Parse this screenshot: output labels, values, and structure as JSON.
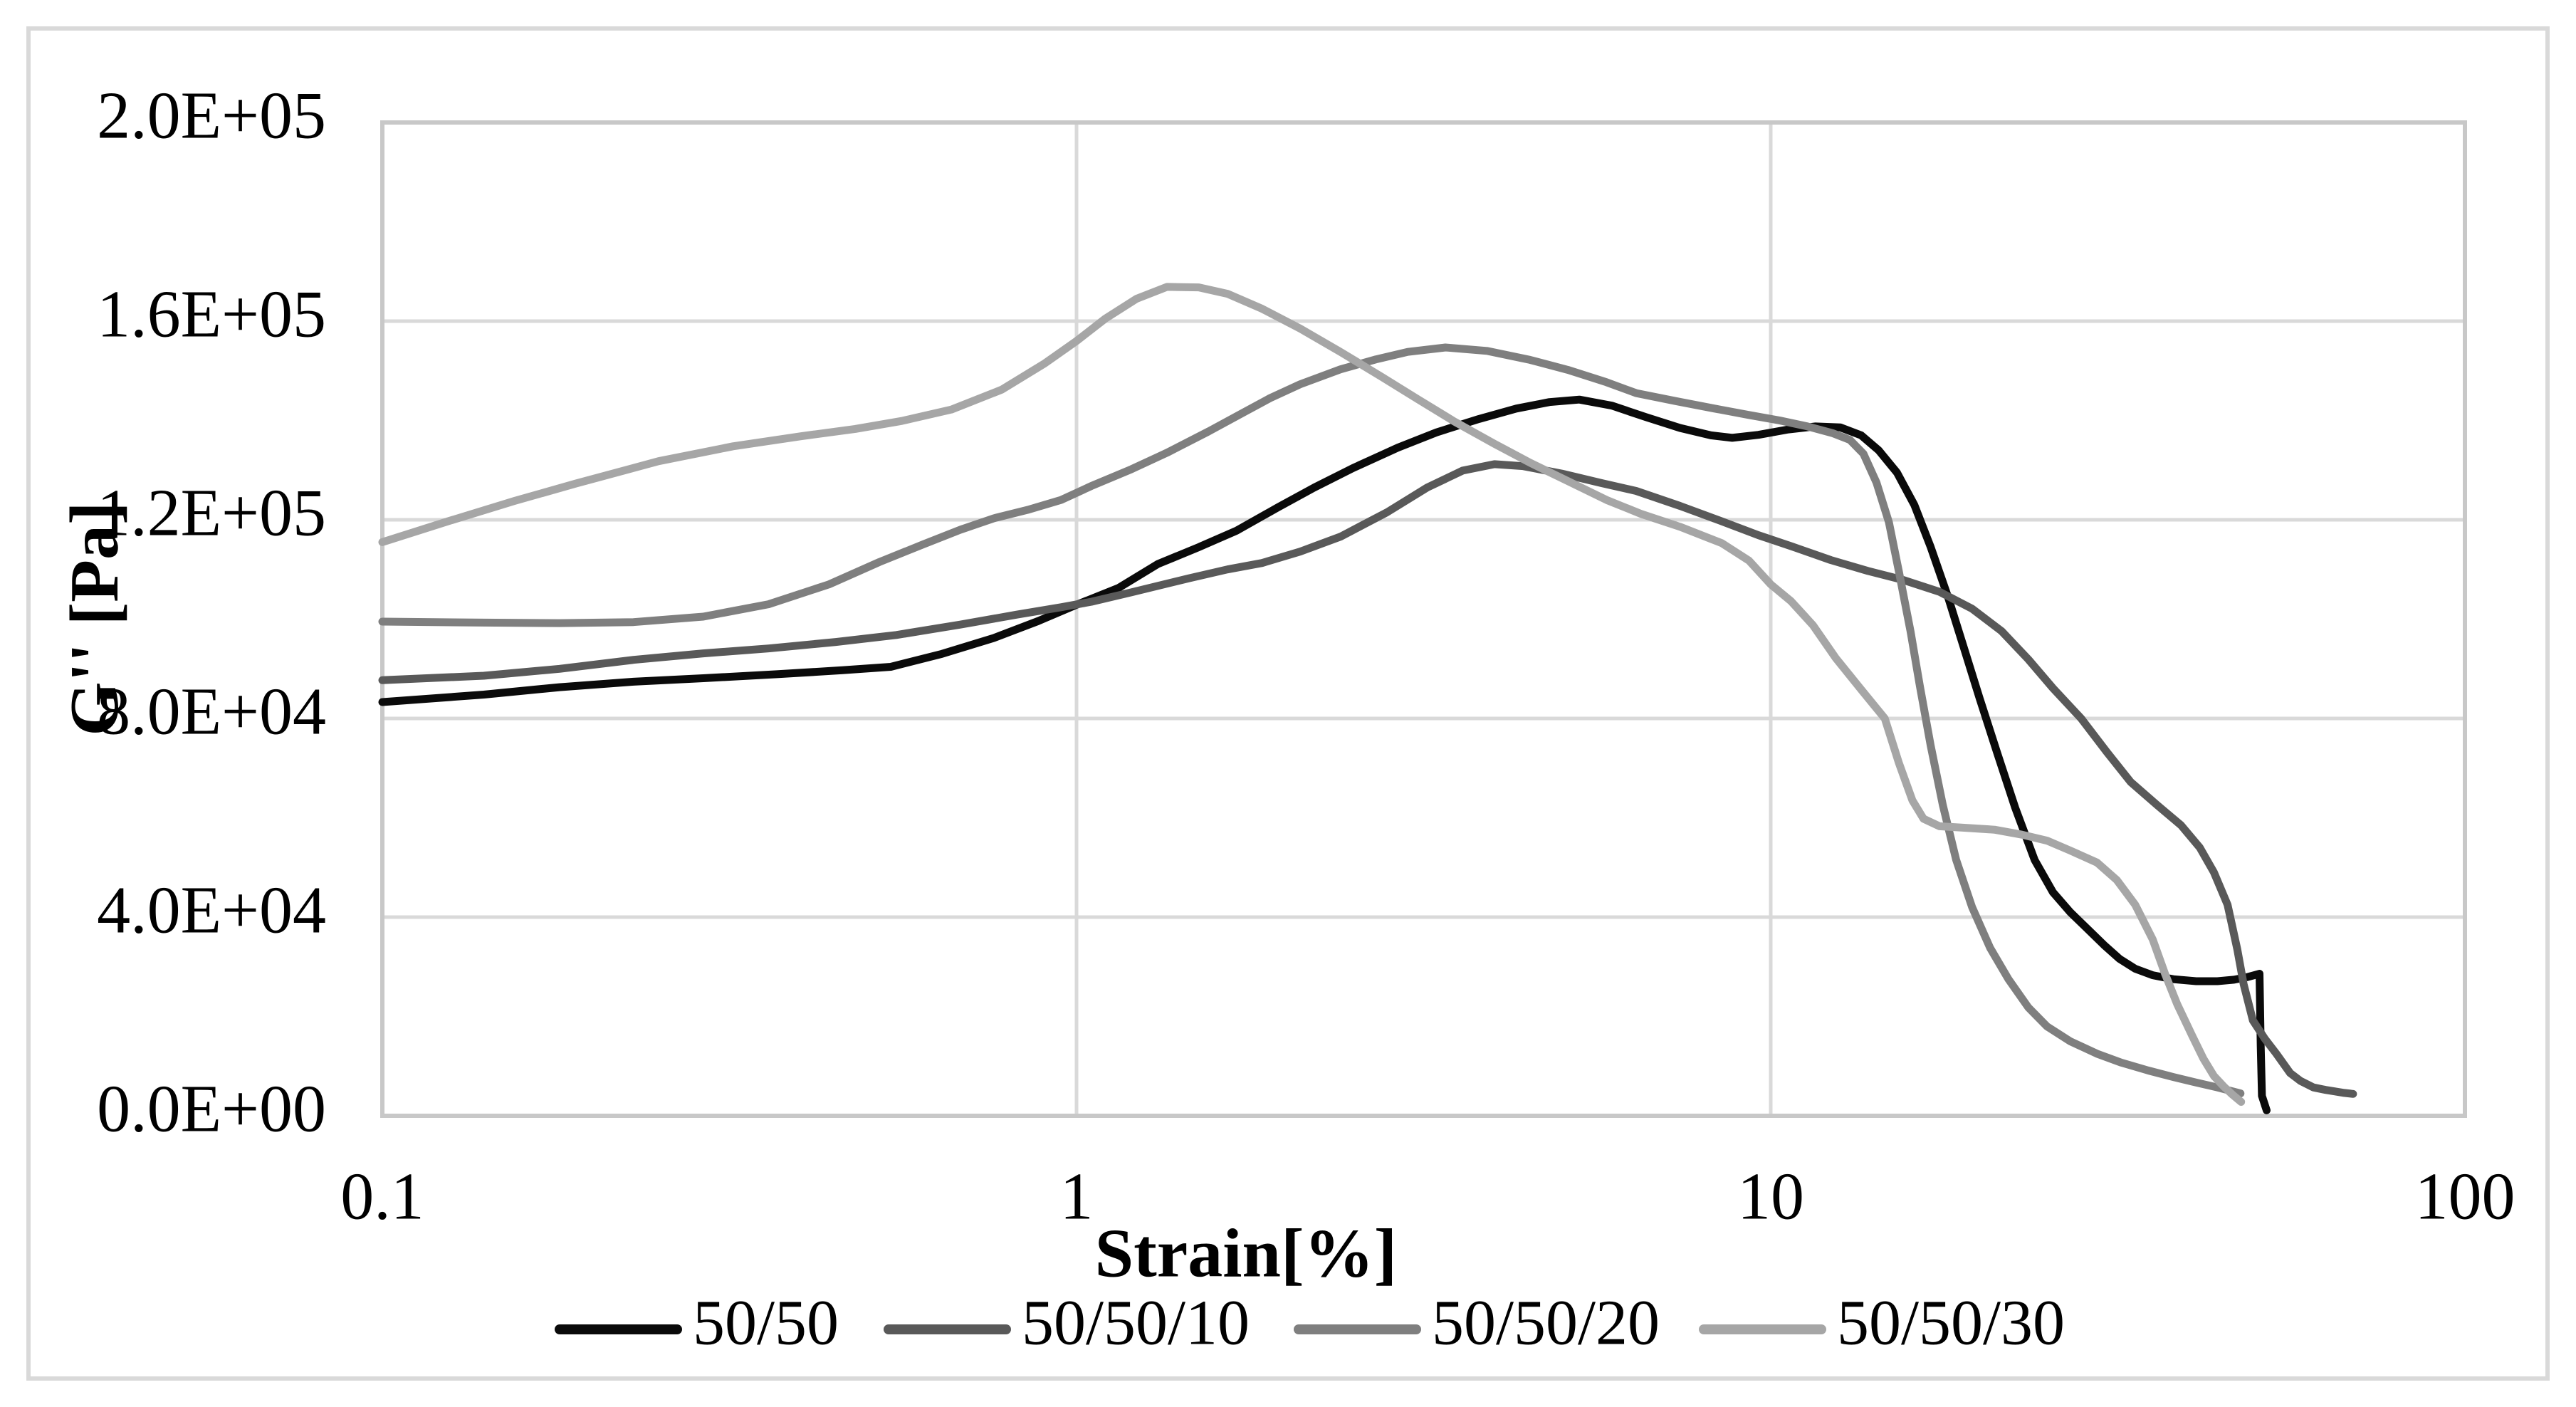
{
  "chart_data": {
    "type": "line",
    "title": "",
    "xlabel": "Strain[%]",
    "ylabel": "G'' [Pa]",
    "x_scale": "log",
    "xlim": [
      0.1,
      100
    ],
    "ylim": [
      0,
      200000
    ],
    "grid": true,
    "legend_position": "bottom-center",
    "x_ticks": [
      {
        "value": 0.1,
        "label": "0.1"
      },
      {
        "value": 1,
        "label": "1"
      },
      {
        "value": 10,
        "label": "10"
      },
      {
        "value": 100,
        "label": "100"
      }
    ],
    "y_ticks": [
      {
        "value": 0,
        "label": "0.0E+00"
      },
      {
        "value": 40000,
        "label": "4.0E+04"
      },
      {
        "value": 80000,
        "label": "8.0E+04"
      },
      {
        "value": 120000,
        "label": "1.2E+05"
      },
      {
        "value": 160000,
        "label": "1.6E+05"
      },
      {
        "value": 200000,
        "label": "2.0E+05"
      }
    ],
    "series": [
      {
        "name": "50/50",
        "color": "#0a0a0a",
        "points": [
          [
            0.1,
            83300
          ],
          [
            0.14,
            84800
          ],
          [
            0.18,
            86300
          ],
          [
            0.23,
            87400
          ],
          [
            0.29,
            88100
          ],
          [
            0.37,
            88900
          ],
          [
            0.46,
            89700
          ],
          [
            0.54,
            90400
          ],
          [
            0.64,
            93000
          ],
          [
            0.76,
            96200
          ],
          [
            0.88,
            99600
          ],
          [
            1.0,
            102900
          ],
          [
            1.15,
            106300
          ],
          [
            1.31,
            111100
          ],
          [
            1.5,
            114500
          ],
          [
            1.7,
            117800
          ],
          [
            1.95,
            122500
          ],
          [
            2.2,
            126500
          ],
          [
            2.5,
            130400
          ],
          [
            2.9,
            134500
          ],
          [
            3.3,
            137600
          ],
          [
            3.8,
            140300
          ],
          [
            4.3,
            142400
          ],
          [
            4.8,
            143700
          ],
          [
            5.3,
            144200
          ],
          [
            5.9,
            143000
          ],
          [
            6.6,
            140700
          ],
          [
            7.4,
            138500
          ],
          [
            8.2,
            137000
          ],
          [
            8.8,
            136500
          ],
          [
            9.6,
            137100
          ],
          [
            10.6,
            138200
          ],
          [
            11.6,
            138800
          ],
          [
            12.6,
            138600
          ],
          [
            13.5,
            137000
          ],
          [
            14.3,
            134000
          ],
          [
            15.2,
            129500
          ],
          [
            16.1,
            123000
          ],
          [
            17.0,
            114500
          ],
          [
            18.0,
            104500
          ],
          [
            19.0,
            94000
          ],
          [
            20.0,
            84000
          ],
          [
            21.2,
            73000
          ],
          [
            22.5,
            62000
          ],
          [
            24.0,
            51500
          ],
          [
            25.5,
            45000
          ],
          [
            27.0,
            41000
          ],
          [
            28.6,
            37600
          ],
          [
            30.2,
            34400
          ],
          [
            31.8,
            31600
          ],
          [
            33.5,
            29600
          ],
          [
            35.5,
            28300
          ],
          [
            38,
            27500
          ],
          [
            41,
            27100
          ],
          [
            44,
            27100
          ],
          [
            46.5,
            27400
          ],
          [
            48.5,
            27900
          ],
          [
            50.0,
            28400
          ],
          [
            50.6,
            28600
          ],
          [
            50.8,
            14000
          ],
          [
            51.0,
            4000
          ],
          [
            51.8,
            1100
          ]
        ]
      },
      {
        "name": "50/50/10",
        "color": "#595959",
        "points": [
          [
            0.1,
            87700
          ],
          [
            0.14,
            88600
          ],
          [
            0.18,
            90000
          ],
          [
            0.23,
            91800
          ],
          [
            0.29,
            93100
          ],
          [
            0.36,
            94100
          ],
          [
            0.45,
            95400
          ],
          [
            0.55,
            96800
          ],
          [
            0.68,
            98900
          ],
          [
            0.82,
            100900
          ],
          [
            0.95,
            102400
          ],
          [
            1.05,
            103500
          ],
          [
            1.2,
            105400
          ],
          [
            1.45,
            108200
          ],
          [
            1.65,
            110000
          ],
          [
            1.85,
            111300
          ],
          [
            2.1,
            113600
          ],
          [
            2.4,
            116600
          ],
          [
            2.8,
            121500
          ],
          [
            3.2,
            126500
          ],
          [
            3.6,
            129900
          ],
          [
            4.0,
            131200
          ],
          [
            4.4,
            130800
          ],
          [
            5.0,
            129300
          ],
          [
            5.7,
            127400
          ],
          [
            6.4,
            125800
          ],
          [
            7.4,
            122800
          ],
          [
            8.5,
            119700
          ],
          [
            9.6,
            116900
          ],
          [
            10.8,
            114500
          ],
          [
            12.2,
            111900
          ],
          [
            13.8,
            109700
          ],
          [
            15.5,
            107900
          ],
          [
            17.5,
            105500
          ],
          [
            19.5,
            102100
          ],
          [
            21.5,
            97600
          ],
          [
            23.5,
            91900
          ],
          [
            25.5,
            86100
          ],
          [
            28,
            80000
          ],
          [
            30.5,
            73200
          ],
          [
            33,
            67200
          ],
          [
            36,
            62600
          ],
          [
            39,
            58500
          ],
          [
            41.5,
            54000
          ],
          [
            43.5,
            49000
          ],
          [
            45.5,
            42500
          ],
          [
            47,
            33500
          ],
          [
            48,
            26500
          ],
          [
            49.5,
            19200
          ],
          [
            51.5,
            15500
          ],
          [
            53.5,
            12500
          ],
          [
            56,
            8600
          ],
          [
            58,
            7000
          ],
          [
            60.5,
            5700
          ],
          [
            63,
            5200
          ],
          [
            65,
            4900
          ],
          [
            67,
            4600
          ],
          [
            69,
            4400
          ]
        ]
      },
      {
        "name": "50/50/20",
        "color": "#7f7f7f",
        "points": [
          [
            0.1,
            99500
          ],
          [
            0.14,
            99300
          ],
          [
            0.18,
            99200
          ],
          [
            0.23,
            99400
          ],
          [
            0.29,
            100500
          ],
          [
            0.36,
            103000
          ],
          [
            0.44,
            107000
          ],
          [
            0.52,
            111500
          ],
          [
            0.6,
            115000
          ],
          [
            0.68,
            118000
          ],
          [
            0.76,
            120300
          ],
          [
            0.85,
            122000
          ],
          [
            0.95,
            124000
          ],
          [
            1.05,
            126800
          ],
          [
            1.2,
            130200
          ],
          [
            1.35,
            133500
          ],
          [
            1.55,
            137800
          ],
          [
            1.75,
            141800
          ],
          [
            1.9,
            144500
          ],
          [
            2.1,
            147300
          ],
          [
            2.4,
            150300
          ],
          [
            2.7,
            152300
          ],
          [
            3.0,
            153800
          ],
          [
            3.4,
            154700
          ],
          [
            3.9,
            154000
          ],
          [
            4.5,
            152200
          ],
          [
            5.1,
            150200
          ],
          [
            5.8,
            147700
          ],
          [
            6.4,
            145500
          ],
          [
            7.3,
            143900
          ],
          [
            8.3,
            142400
          ],
          [
            9.3,
            141100
          ],
          [
            10.3,
            140000
          ],
          [
            11.3,
            138800
          ],
          [
            12.3,
            137400
          ],
          [
            13.0,
            136100
          ],
          [
            13.6,
            133300
          ],
          [
            14.2,
            127500
          ],
          [
            14.8,
            119500
          ],
          [
            15.3,
            109500
          ],
          [
            15.9,
            97500
          ],
          [
            16.4,
            86500
          ],
          [
            17.0,
            74500
          ],
          [
            17.7,
            62500
          ],
          [
            18.5,
            51500
          ],
          [
            19.5,
            42000
          ],
          [
            20.7,
            33800
          ],
          [
            22,
            27500
          ],
          [
            23.5,
            21800
          ],
          [
            25,
            18000
          ],
          [
            27,
            15000
          ],
          [
            29.5,
            12500
          ],
          [
            32,
            10700
          ],
          [
            35,
            9100
          ],
          [
            38,
            7800
          ],
          [
            41,
            6700
          ],
          [
            44,
            5700
          ],
          [
            46,
            5000
          ],
          [
            47.5,
            4500
          ]
        ]
      },
      {
        "name": "50/50/30",
        "color": "#a6a6a6",
        "points": [
          [
            0.1,
            115500
          ],
          [
            0.125,
            119800
          ],
          [
            0.155,
            123800
          ],
          [
            0.19,
            127300
          ],
          [
            0.25,
            131800
          ],
          [
            0.32,
            134800
          ],
          [
            0.4,
            136800
          ],
          [
            0.48,
            138300
          ],
          [
            0.56,
            139900
          ],
          [
            0.66,
            142200
          ],
          [
            0.78,
            146200
          ],
          [
            0.9,
            151500
          ],
          [
            1.0,
            156000
          ],
          [
            1.1,
            160500
          ],
          [
            1.22,
            164500
          ],
          [
            1.35,
            166900
          ],
          [
            1.5,
            166800
          ],
          [
            1.65,
            165500
          ],
          [
            1.85,
            162500
          ],
          [
            2.1,
            158500
          ],
          [
            2.4,
            153800
          ],
          [
            2.75,
            148800
          ],
          [
            3.1,
            144300
          ],
          [
            3.5,
            139800
          ],
          [
            4.0,
            135300
          ],
          [
            4.5,
            131500
          ],
          [
            5.1,
            127800
          ],
          [
            5.8,
            124000
          ],
          [
            6.5,
            121200
          ],
          [
            7.4,
            118600
          ],
          [
            8.5,
            115300
          ],
          [
            9.3,
            111800
          ],
          [
            10.0,
            107000
          ],
          [
            10.7,
            103600
          ],
          [
            11.5,
            98800
          ],
          [
            12.4,
            92200
          ],
          [
            13.5,
            85800
          ],
          [
            14.6,
            80000
          ],
          [
            15.3,
            71000
          ],
          [
            16.0,
            63500
          ],
          [
            16.6,
            59800
          ],
          [
            17.5,
            58300
          ],
          [
            19,
            58000
          ],
          [
            21,
            57600
          ],
          [
            23,
            56600
          ],
          [
            25,
            55400
          ],
          [
            27,
            53400
          ],
          [
            29.5,
            51000
          ],
          [
            31.5,
            47500
          ],
          [
            33.5,
            42500
          ],
          [
            35.5,
            35500
          ],
          [
            37,
            28500
          ],
          [
            38.5,
            22500
          ],
          [
            40.5,
            16000
          ],
          [
            42,
            11500
          ],
          [
            43.5,
            8000
          ],
          [
            45,
            5800
          ],
          [
            46.3,
            4200
          ],
          [
            47.6,
            2800
          ]
        ]
      }
    ]
  },
  "legend": {
    "items": [
      "50/50",
      "50/50/10",
      "50/50/20",
      "50/50/30"
    ]
  },
  "colors": {
    "background": "#ffffff",
    "gridline": "#d9d9d9",
    "plot_border": "#c8c8c8",
    "outer_border": "#d9d9d9",
    "text": "#000000"
  }
}
